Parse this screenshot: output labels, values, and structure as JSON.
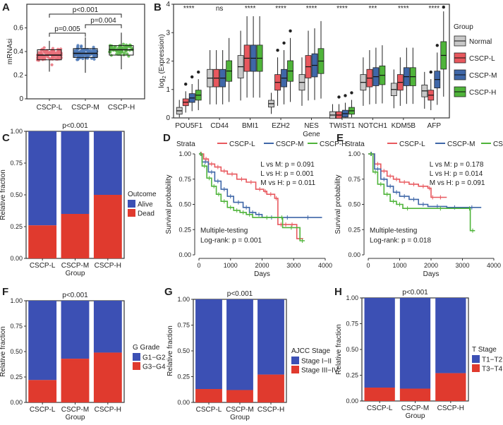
{
  "colors": {
    "Normal": "#c8c8c8",
    "CSCP-L": "#e8585e",
    "CSCP-M": "#3f67a8",
    "CSCP-H": "#4fb43a",
    "alive": "#3c50b4",
    "dead": "#e03a2e",
    "scatterL": "#e8707a",
    "scatterM": "#4f7ab8",
    "scatterH": "#59b848"
  },
  "chart_data": [
    {
      "panel": "A",
      "type": "scatter",
      "ylabel": "mRNAsi",
      "ylim": [
        0,
        0.8
      ],
      "yticks": [
        0,
        0.2,
        0.4,
        0.6
      ],
      "categories": [
        "CSCP-L",
        "CSCP-M",
        "CSCP-H"
      ],
      "medians": [
        0.37,
        0.385,
        0.415
      ],
      "q1": [
        0.33,
        0.35,
        0.37
      ],
      "q3": [
        0.415,
        0.425,
        0.45
      ],
      "whisker_low": [
        0.23,
        0.22,
        0.25
      ],
      "whisker_high": [
        0.49,
        0.52,
        0.56
      ],
      "annotations": [
        {
          "label": "p<0.001",
          "from": 0,
          "to": 2
        },
        {
          "label": "p=0.005",
          "from": 0,
          "to": 1
        },
        {
          "label": "p=0.004",
          "from": 1,
          "to": 2
        }
      ]
    },
    {
      "panel": "B",
      "type": "box",
      "xlabel": "Gene",
      "ylabel_main": "log",
      "ylabel_sub": "2",
      "ylabel_rest": " (Expression)",
      "ylim": [
        0,
        4
      ],
      "yticks": [
        0,
        1,
        2,
        3,
        4
      ],
      "categories": [
        "POU5F1",
        "CD44",
        "BMI1",
        "EZH2",
        "NES",
        "TWIST1",
        "NOTCH1",
        "KDM5B",
        "AFP"
      ],
      "significance": [
        "****",
        "ns",
        "****",
        "****",
        "****",
        "****",
        "***",
        "****",
        "****"
      ],
      "legend_title": "Group",
      "series": [
        {
          "name": "Normal",
          "median": [
            0.25,
            1.4,
            1.8,
            0.5,
            1.25,
            0.1,
            1.25,
            1.0,
            0.95
          ]
        },
        {
          "name": "CSCP-L",
          "median": [
            0.55,
            1.4,
            2.1,
            1.25,
            1.8,
            0.1,
            1.4,
            1.25,
            0.8
          ]
        },
        {
          "name": "CSCP-M",
          "median": [
            0.7,
            1.4,
            2.1,
            1.4,
            1.85,
            0.15,
            1.45,
            1.45,
            1.35
          ]
        },
        {
          "name": "CSCP-H",
          "median": [
            0.8,
            1.65,
            2.1,
            1.65,
            2.0,
            0.25,
            1.5,
            1.45,
            2.2
          ]
        }
      ]
    },
    {
      "panel": "C",
      "type": "bar",
      "title": "p<0.001",
      "ylabel": "Relative fraction",
      "categories": [
        "CSCP-L",
        "CSCP-M",
        "CSCP-H"
      ],
      "xlabel": "Group",
      "legend_title": "Outcome",
      "series": [
        {
          "name": "Alive",
          "values": [
            0.74,
            0.65,
            0.5
          ]
        },
        {
          "name": "Dead",
          "values": [
            0.26,
            0.35,
            0.5
          ]
        }
      ],
      "yticks": [
        0,
        0.25,
        0.5,
        0.75,
        1
      ]
    },
    {
      "panel": "D",
      "type": "line",
      "legend_title": "Strata",
      "xlabel": "Days",
      "ylabel": "Survival probability",
      "xlim": [
        0,
        4000
      ],
      "ylim": [
        0,
        1
      ],
      "xticks": [
        0,
        1000,
        2000,
        3000,
        4000
      ],
      "yticks": [
        0,
        0.25,
        0.5,
        0.75,
        1
      ],
      "stats": [
        "L vs M: p = 0.091",
        "L vs H: p = 0.001",
        "M vs H: p = 0.011"
      ],
      "test_label": "Multiple-testing",
      "logrank": "Log-rank: p = 0.001",
      "series": [
        {
          "name": "CSCP-L",
          "x": [
            0,
            150,
            300,
            500,
            700,
            900,
            1200,
            1500,
            1800,
            2050,
            2150,
            2400,
            2500,
            2700,
            2800,
            3100,
            3300
          ],
          "y": [
            1,
            0.95,
            0.9,
            0.87,
            0.83,
            0.8,
            0.75,
            0.72,
            0.65,
            0.63,
            0.6,
            0.56,
            0.3,
            0.3,
            0.3,
            0.16,
            0.16
          ]
        },
        {
          "name": "CSCP-M",
          "x": [
            0,
            100,
            300,
            500,
            700,
            900,
            1100,
            1400,
            1600,
            1800,
            2000,
            2600,
            3000,
            3900
          ],
          "y": [
            1,
            0.92,
            0.82,
            0.73,
            0.65,
            0.58,
            0.52,
            0.47,
            0.42,
            0.4,
            0.37,
            0.37,
            0.37,
            0.37
          ]
        },
        {
          "name": "CSCP-H",
          "x": [
            0,
            100,
            250,
            400,
            550,
            700,
            900,
            1100,
            1300,
            1500,
            1700,
            2600,
            2650,
            3200,
            3350
          ],
          "y": [
            1,
            0.88,
            0.76,
            0.68,
            0.6,
            0.53,
            0.47,
            0.44,
            0.42,
            0.4,
            0.37,
            0.37,
            0.27,
            0.14,
            0.14
          ]
        }
      ]
    },
    {
      "panel": "E",
      "type": "line",
      "legend_title": "Strata",
      "xlabel": "Days",
      "ylabel": "Survival probability",
      "xlim": [
        0,
        4000
      ],
      "ylim": [
        0,
        1
      ],
      "xticks": [
        0,
        1000,
        2000,
        3000,
        4000
      ],
      "yticks": [
        0,
        0.25,
        0.5,
        0.75,
        1
      ],
      "stats": [
        "L vs M: p = 0.178",
        "L vs H: p = 0.014",
        "M vs H: p = 0.091"
      ],
      "test_label": "Multiple-testing",
      "logrank": "Log-rank: p = 0.018",
      "series": [
        {
          "name": "CSCP-L",
          "x": [
            0,
            200,
            400,
            600,
            800,
            1000,
            1300,
            1600,
            1900,
            2000,
            2100,
            2500
          ],
          "y": [
            1,
            0.9,
            0.83,
            0.78,
            0.75,
            0.72,
            0.7,
            0.68,
            0.66,
            0.57,
            0.57,
            0.57
          ]
        },
        {
          "name": "CSCP-M",
          "x": [
            0,
            200,
            400,
            600,
            800,
            1000,
            1300,
            1600,
            1900,
            2500,
            3000,
            3600
          ],
          "y": [
            1,
            0.85,
            0.75,
            0.68,
            0.62,
            0.58,
            0.55,
            0.5,
            0.48,
            0.47,
            0.47,
            0.47
          ]
        },
        {
          "name": "CSCP-H",
          "x": [
            0,
            150,
            300,
            500,
            700,
            900,
            1100,
            1400,
            3200,
            3250,
            3400
          ],
          "y": [
            1,
            0.82,
            0.7,
            0.6,
            0.53,
            0.5,
            0.46,
            0.46,
            0.46,
            0.24,
            0.24
          ]
        }
      ]
    },
    {
      "panel": "F",
      "type": "bar",
      "title": "p<0.001",
      "ylabel": "Relative fraction",
      "categories": [
        "CSCP-L",
        "CSCP-M",
        "CSCP-H"
      ],
      "xlabel": "Group",
      "legend_title": "G Grade",
      "series": [
        {
          "name": "G1−G2",
          "values": [
            0.78,
            0.57,
            0.51
          ]
        },
        {
          "name": "G3−G4",
          "values": [
            0.22,
            0.43,
            0.49
          ]
        }
      ],
      "yticks": [
        0,
        0.25,
        0.5,
        0.75,
        1
      ]
    },
    {
      "panel": "G",
      "type": "bar",
      "title": "p<0.001",
      "ylabel": "Relative fraction",
      "categories": [
        "CSCP-L",
        "CSCP-M",
        "CSCP-H"
      ],
      "xlabel": "Group",
      "legend_title": "AJCC Stage",
      "series": [
        {
          "name": "Stage I−II",
          "values": [
            0.87,
            0.88,
            0.73
          ]
        },
        {
          "name": "Stage III−IV",
          "values": [
            0.13,
            0.12,
            0.27
          ]
        }
      ],
      "yticks": [
        0,
        0.25,
        0.5,
        0.75,
        1
      ]
    },
    {
      "panel": "H",
      "type": "bar",
      "title": "p<0.001",
      "ylabel": "Relative fraction",
      "categories": [
        "CSCP-L",
        "CSCP-M",
        "CSCP-H"
      ],
      "xlabel": "Group",
      "legend_title": "T Stage",
      "series": [
        {
          "name": "T1−T2",
          "values": [
            0.87,
            0.88,
            0.73
          ]
        },
        {
          "name": "T3−T4",
          "values": [
            0.13,
            0.12,
            0.27
          ]
        }
      ],
      "yticks": [
        0,
        0.25,
        0.5,
        0.75,
        1
      ]
    }
  ]
}
